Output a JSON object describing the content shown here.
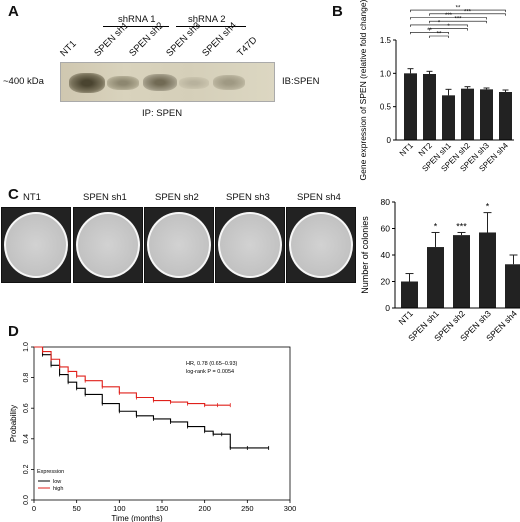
{
  "panels": {
    "A": {
      "letter": "A",
      "group1": "shRNA 1",
      "group2": "shRNA 2",
      "lanes": [
        "NT1",
        "SPEN sh1",
        "SPEN sh2",
        "SPEN sh3",
        "SPEN sh4",
        "T47D"
      ],
      "mw": "~400 kDa",
      "ib": "IB:SPEN",
      "ip": "IP: SPEN"
    },
    "B": {
      "letter": "B"
    },
    "C": {
      "letter": "C",
      "dish_labels": [
        "NT1",
        "SPEN sh1",
        "SPEN sh2",
        "SPEN sh3",
        "SPEN sh4"
      ]
    },
    "D": {
      "letter": "D",
      "hr": "HR, 0.78 (0.65–0.93)",
      "logrank": "log-rank P = 0.0054",
      "legend_title": "Expression",
      "legend_low": "low",
      "legend_high": "high",
      "low_color": "#000000",
      "high_color": "#e0201b"
    }
  },
  "chart_data": [
    {
      "type": "bar",
      "panel": "B",
      "ylabel": "Gene expression of SPEN (relative fold change)",
      "categories": [
        "NT1",
        "NT2",
        "SPEN sh1",
        "SPEN sh2",
        "SPEN sh3",
        "SPEN sh4"
      ],
      "values": [
        1.0,
        0.99,
        0.67,
        0.77,
        0.76,
        0.72
      ],
      "errors": [
        0.07,
        0.04,
        0.09,
        0.03,
        0.02,
        0.03
      ],
      "ylim": [
        0,
        1.5
      ],
      "yticks": [
        "0",
        "0.5",
        "1.0",
        "1.5"
      ],
      "significance": [
        "**",
        "**",
        "*",
        "*",
        "***",
        "***",
        "***",
        "**"
      ]
    },
    {
      "type": "bar",
      "panel": "C",
      "ylabel": "Number of colonies",
      "categories": [
        "NT1",
        "SPEN sh1",
        "SPEN sh2",
        "SPEN sh3",
        "SPEN sh4"
      ],
      "values": [
        20,
        46,
        55,
        57,
        33
      ],
      "errors": [
        6,
        11,
        2,
        15,
        7
      ],
      "ylim": [
        0,
        80
      ],
      "yticks": [
        "0",
        "20",
        "40",
        "60",
        "80"
      ],
      "significance": [
        "",
        "*",
        "***",
        "*",
        ""
      ]
    },
    {
      "type": "line",
      "panel": "D",
      "xlabel": "Time (months)",
      "ylabel": "Probability",
      "xlim": [
        0,
        300
      ],
      "ylim": [
        0,
        1
      ],
      "xticks": [
        "0",
        "50",
        "100",
        "150",
        "200",
        "250",
        "300"
      ],
      "yticks": [
        "0.0",
        "0.2",
        "0.4",
        "0.6",
        "0.8",
        "1.0"
      ],
      "series": [
        {
          "name": "low",
          "x": [
            0,
            10,
            20,
            30,
            40,
            50,
            60,
            80,
            100,
            120,
            140,
            160,
            180,
            200,
            210,
            220,
            230,
            250,
            275
          ],
          "y": [
            1.0,
            0.95,
            0.88,
            0.82,
            0.77,
            0.73,
            0.69,
            0.63,
            0.58,
            0.55,
            0.53,
            0.51,
            0.48,
            0.45,
            0.43,
            0.43,
            0.34,
            0.34,
            0.34
          ]
        },
        {
          "name": "high",
          "x": [
            0,
            10,
            20,
            30,
            40,
            50,
            60,
            80,
            100,
            120,
            140,
            160,
            180,
            200,
            215,
            230
          ],
          "y": [
            1.0,
            0.97,
            0.92,
            0.87,
            0.84,
            0.81,
            0.78,
            0.74,
            0.7,
            0.67,
            0.65,
            0.64,
            0.63,
            0.62,
            0.62,
            0.62
          ]
        }
      ]
    }
  ]
}
